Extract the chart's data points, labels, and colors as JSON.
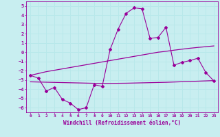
{
  "xlabel": "Windchill (Refroidissement éolien,°C)",
  "bg_color": "#c8eef0",
  "line_color": "#990099",
  "grid_color": "#b8e8ea",
  "x_values": [
    0,
    1,
    2,
    3,
    4,
    5,
    6,
    7,
    8,
    9,
    10,
    11,
    12,
    13,
    14,
    15,
    16,
    17,
    18,
    19,
    20,
    21,
    22,
    23
  ],
  "y_main": [
    -2.5,
    -2.8,
    -4.2,
    -3.8,
    -5.1,
    -5.5,
    -6.2,
    -6.0,
    -3.5,
    -3.7,
    0.3,
    2.5,
    4.2,
    4.8,
    4.7,
    1.5,
    1.6,
    2.7,
    -1.4,
    -1.1,
    -0.9,
    -0.65,
    -2.2,
    -3.1
  ],
  "y_upper": [
    -2.5,
    -2.3,
    -2.1,
    -1.95,
    -1.8,
    -1.65,
    -1.5,
    -1.35,
    -1.2,
    -1.05,
    -0.9,
    -0.75,
    -0.6,
    -0.45,
    -0.3,
    -0.15,
    0.0,
    0.1,
    0.22,
    0.33,
    0.43,
    0.52,
    0.6,
    0.68
  ],
  "y_lower": [
    -3.2,
    -3.22,
    -3.24,
    -3.26,
    -3.28,
    -3.3,
    -3.32,
    -3.34,
    -3.36,
    -3.37,
    -3.37,
    -3.36,
    -3.35,
    -3.33,
    -3.31,
    -3.29,
    -3.27,
    -3.25,
    -3.22,
    -3.19,
    -3.16,
    -3.13,
    -3.1,
    -3.07
  ],
  "ylim": [
    -6.5,
    5.5
  ],
  "xlim": [
    -0.5,
    23.5
  ],
  "yticks": [
    -6,
    -5,
    -4,
    -3,
    -2,
    -1,
    0,
    1,
    2,
    3,
    4,
    5
  ],
  "xticks": [
    0,
    1,
    2,
    3,
    4,
    5,
    6,
    7,
    8,
    9,
    10,
    11,
    12,
    13,
    14,
    15,
    16,
    17,
    18,
    19,
    20,
    21,
    22,
    23
  ]
}
